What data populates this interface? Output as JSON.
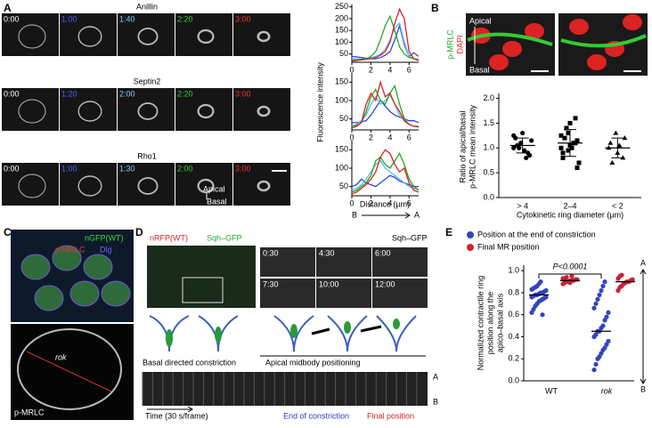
{
  "panels": {
    "A": {
      "label": "A",
      "rows": [
        {
          "title": "Anillin",
          "times": [
            {
              "text": "0:00",
              "color": "#ffffff"
            },
            {
              "text": "1:00",
              "color": "#5a5aff"
            },
            {
              "text": "1:40",
              "color": "#7fd0f5"
            },
            {
              "text": "2:20",
              "color": "#33cc33"
            },
            {
              "text": "3:00",
              "color": "#ee3333"
            }
          ]
        },
        {
          "title": "Septin2",
          "times": [
            {
              "text": "0:00",
              "color": "#ffffff"
            },
            {
              "text": "1:20",
              "color": "#5a5aff"
            },
            {
              "text": "2:00",
              "color": "#7fd0f5"
            },
            {
              "text": "2:20",
              "color": "#33cc33"
            },
            {
              "text": "3:00",
              "color": "#ee3333"
            }
          ]
        },
        {
          "title": "Rho1",
          "times": [
            {
              "text": "0:00",
              "color": "#ffffff"
            },
            {
              "text": "1:00",
              "color": "#5a5aff"
            },
            {
              "text": "1:30",
              "color": "#7fd0f5"
            },
            {
              "text": "2:00",
              "color": "#33cc33"
            },
            {
              "text": "3:00",
              "color": "#ee3333"
            }
          ]
        }
      ],
      "apical": "Apical",
      "basal": "Basal",
      "ylabel": "Fluorescence intensity",
      "xlabel": "Distance (µm)",
      "from": "B",
      "to": "A",
      "x": [
        0,
        0.5,
        1,
        1.5,
        2,
        2.5,
        3,
        3.5,
        4,
        4.5,
        5,
        5.5,
        6,
        6.5,
        7
      ],
      "xlim": [
        0,
        7
      ],
      "xticks": [
        0,
        2,
        4,
        6
      ],
      "plots": [
        {
          "ylim": [
            15,
            260
          ],
          "yticks": [
            50,
            100,
            150,
            200,
            250
          ],
          "series": [
            {
              "color": "#3344dd",
              "values": [
                40,
                38,
                35,
                32,
                30,
                30,
                35,
                45,
                60,
                110,
                170,
                90,
                40,
                55,
                40
              ]
            },
            {
              "color": "#55bbee",
              "values": [
                30,
                30,
                28,
                30,
                35,
                40,
                50,
                70,
                110,
                160,
                180,
                100,
                40,
                30,
                28
              ]
            },
            {
              "color": "#22aa22",
              "values": [
                25,
                25,
                28,
                30,
                40,
                60,
                110,
                170,
                210,
                150,
                80,
                50,
                35,
                30,
                25
              ]
            },
            {
              "color": "#dd2222",
              "values": [
                20,
                22,
                25,
                28,
                30,
                35,
                45,
                60,
                100,
                180,
                240,
                200,
                60,
                30,
                22
              ]
            }
          ]
        },
        {
          "ylim": [
            20,
            175
          ],
          "yticks": [
            50,
            100,
            150
          ],
          "series": [
            {
              "color": "#3344dd",
              "values": [
                40,
                40,
                42,
                45,
                60,
                80,
                100,
                85,
                70,
                60,
                55,
                50,
                45,
                45,
                40
              ]
            },
            {
              "color": "#55bbee",
              "values": [
                30,
                35,
                45,
                60,
                90,
                110,
                90,
                100,
                115,
                90,
                60,
                45,
                35,
                30,
                30
              ]
            },
            {
              "color": "#22aa22",
              "values": [
                30,
                32,
                40,
                70,
                110,
                130,
                100,
                90,
                120,
                140,
                90,
                50,
                35,
                30,
                30
              ]
            },
            {
              "color": "#dd2222",
              "values": [
                25,
                30,
                40,
                90,
                120,
                100,
                150,
                110,
                120,
                90,
                70,
                45,
                35,
                30,
                28
              ]
            }
          ]
        },
        {
          "ylim": [
            25,
            175
          ],
          "yticks": [
            50,
            100,
            150
          ],
          "series": [
            {
              "color": "#3344dd",
              "values": [
                50,
                55,
                70,
                60,
                55,
                50,
                60,
                70,
                80,
                75,
                65,
                60,
                55,
                50,
                50
              ]
            },
            {
              "color": "#55bbee",
              "values": [
                40,
                45,
                55,
                70,
                90,
                110,
                120,
                100,
                90,
                80,
                70,
                60,
                50,
                45,
                42
              ]
            },
            {
              "color": "#22aa22",
              "values": [
                35,
                40,
                50,
                60,
                80,
                120,
                130,
                110,
                100,
                120,
                140,
                110,
                70,
                50,
                40
              ]
            },
            {
              "color": "#dd2222",
              "values": [
                30,
                35,
                45,
                55,
                70,
                90,
                130,
                150,
                140,
                110,
                90,
                100,
                60,
                40,
                35
              ]
            }
          ]
        }
      ]
    },
    "B": {
      "label": "B",
      "stain1": "p-MRLC",
      "stain2": "DAPI",
      "apical": "Apical",
      "basal": "Basal",
      "ylabel": [
        "Ratio of apical/basal",
        "p-MRLC mean intensity"
      ],
      "xlabel": "Cytokinetic ring diameter (µm)",
      "categories": [
        "> 4",
        "2–4",
        "< 2"
      ],
      "markers": [
        "circle",
        "square",
        "triangle"
      ],
      "ylim": [
        0,
        2.1
      ],
      "yticks": [
        {
          "value": 0,
          "label": "0.0"
        },
        0.5,
        {
          "value": 1,
          "label": "1.0"
        },
        1.5,
        {
          "value": 2,
          "label": "2.0"
        }
      ],
      "values": [
        [
          1.0,
          1.1,
          0.9,
          1.2,
          1.3,
          0.85,
          1.05,
          0.95,
          1.15,
          1.0,
          0.8,
          1.25
        ],
        [
          1.0,
          1.3,
          1.1,
          0.9,
          1.5,
          0.6,
          1.2,
          1.0,
          0.7,
          1.4,
          1.1,
          1.25,
          0.95,
          1.6,
          0.8,
          1.05,
          1.15
        ],
        [
          1.0,
          1.3,
          0.8,
          1.1,
          0.9,
          1.2,
          0.7,
          1.05
        ]
      ],
      "means": [
        1.05,
        1.1,
        1.0
      ],
      "errors": [
        0.15,
        0.27,
        0.2
      ]
    },
    "C": {
      "label": "C",
      "stain1": "nGFP(WT)",
      "stain2": "p-MRLC",
      "stain3": "Dlg",
      "mutant": "rok",
      "bottom": "p-MRLC"
    },
    "D": {
      "label": "D",
      "stain1": "nRFP(WT)",
      "stain2": "Sqh–GFP",
      "frames_label": "Sqh–GFP",
      "times": [
        "0:30",
        "4:30",
        "6:00",
        "7:30",
        "10:00",
        "12:00"
      ],
      "stage1": "Basal directed constriction",
      "stage2": "Apical midbody positioning",
      "time": "Time (30 s/frame)",
      "end": "End of constriction",
      "final": "Final position",
      "apex": "A",
      "base": "B"
    },
    "E": {
      "label": "E",
      "legend": [
        {
          "name": "Position at the end of constriction",
          "color": "#3344bb"
        },
        {
          "name": "Final MR position",
          "color": "#cc2233"
        }
      ],
      "pvalue": "P<0.0001",
      "ylabel": [
        "Normalized contractile ring",
        "position along the",
        "apico–basal axis"
      ],
      "categories": [
        "WT",
        "rok"
      ],
      "apex": "A",
      "base": "B",
      "ylim": [
        0,
        1.05
      ],
      "yticks": [
        {
          "value": 0,
          "label": "0.0"
        },
        0.2,
        0.4,
        0.6,
        0.8,
        {
          "value": 1,
          "label": "1.0"
        }
      ],
      "groups": [
        {
          "series": 0,
          "category": 0,
          "values": [
            0.62,
            0.65,
            0.68,
            0.7,
            0.72,
            0.73,
            0.74,
            0.75,
            0.76,
            0.76,
            0.77,
            0.78,
            0.78,
            0.79,
            0.8,
            0.8,
            0.81,
            0.82,
            0.83,
            0.84,
            0.85,
            0.86,
            0.88,
            0.9,
            0.6
          ],
          "median": 0.78
        },
        {
          "series": 1,
          "category": 0,
          "values": [
            0.88,
            0.89,
            0.9,
            0.9,
            0.91,
            0.91,
            0.91,
            0.92,
            0.92,
            0.93,
            0.93,
            0.94,
            0.9,
            0.89,
            0.95
          ],
          "median": 0.91
        },
        {
          "series": 0,
          "category": 1,
          "values": [
            0.1,
            0.15,
            0.2,
            0.22,
            0.25,
            0.28,
            0.3,
            0.33,
            0.36,
            0.4,
            0.42,
            0.45,
            0.45,
            0.48,
            0.5,
            0.55,
            0.58,
            0.62,
            0.66,
            0.7,
            0.74,
            0.78,
            0.82,
            0.86,
            0.9
          ],
          "median": 0.45
        },
        {
          "series": 1,
          "category": 1,
          "values": [
            0.82,
            0.85,
            0.86,
            0.88,
            0.89,
            0.9,
            0.9,
            0.91,
            0.92,
            0.93,
            0.95,
            0.96
          ],
          "median": 0.9
        }
      ]
    }
  }
}
